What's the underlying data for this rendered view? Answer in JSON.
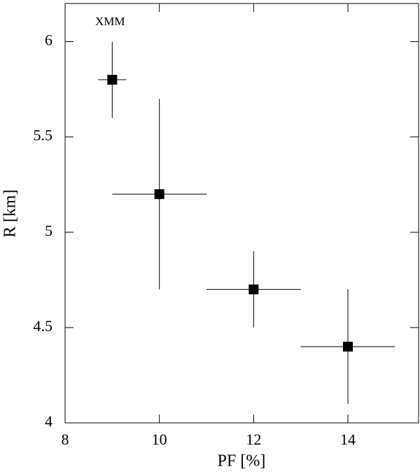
{
  "chart_data": {
    "type": "errorbar-scatter",
    "annotation": "XMM",
    "x_label": "PF [%]",
    "y_label": "R [km]",
    "x": [
      9,
      10,
      12,
      14
    ],
    "values": [
      5.8,
      5.2,
      4.7,
      4.4
    ],
    "xerr": [
      0.3,
      1,
      1,
      1
    ],
    "yerr": [
      0.2,
      0.5,
      0.2,
      0.3
    ],
    "color": "#000000",
    "xlim": [
      8,
      15.5
    ],
    "ylim": [
      4,
      6.2
    ],
    "xticks": [
      8,
      10,
      12,
      14
    ],
    "yticks": [
      4,
      4.5,
      5,
      5.5,
      6
    ]
  }
}
